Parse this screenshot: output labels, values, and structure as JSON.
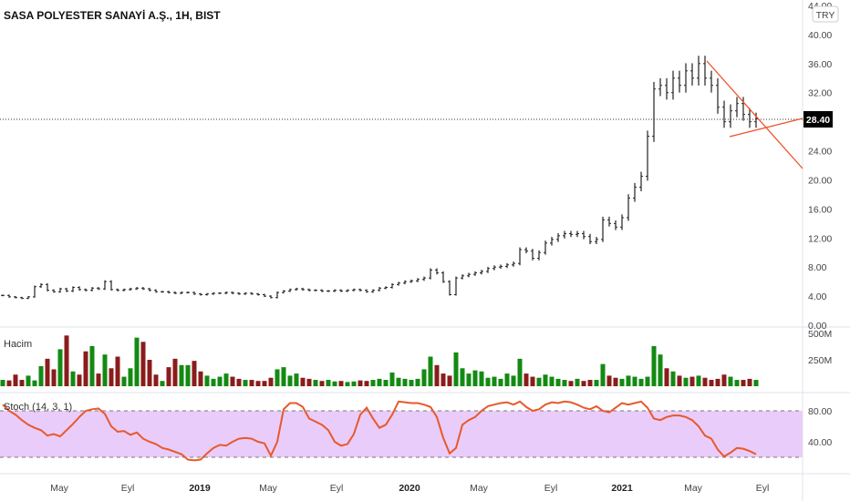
{
  "header": {
    "title": "SASA POLYESTER SANAYİ A.Ş., 1H, BIST",
    "currency_badge": "TRY"
  },
  "price_axis": {
    "ticks": [
      "44.00",
      "40.00",
      "36.00",
      "32.00",
      "24.00",
      "20.00",
      "16.00",
      "12.00",
      "8.00",
      "4.00",
      "0.00"
    ],
    "last_price": "28.40"
  },
  "volume_pane": {
    "label": "Hacim",
    "ticks": [
      "500M",
      "250M"
    ]
  },
  "stoch_pane": {
    "label": "Stoch (14, 3, 1)",
    "ticks": [
      "80.00",
      "40.00"
    ]
  },
  "time_axis": {
    "labels": [
      "May",
      "Eyl",
      "2019",
      "May",
      "Eyl",
      "2020",
      "May",
      "Eyl",
      "2021",
      "May",
      "Eyl"
    ]
  },
  "colors": {
    "bar": "#222222",
    "up": "#138a13",
    "down": "#8b1c1c",
    "stoch_line": "#e8592a",
    "stoch_band": "#e9ccfa",
    "trendline": "#f0502a"
  },
  "chart_data": [
    {
      "type": "ohlc-bar",
      "title": "SASA POLYESTER SANAYİ A.Ş., 1H, BIST",
      "ylim": [
        0,
        44
      ],
      "last": 28.4,
      "close": [
        4.1,
        3.9,
        3.8,
        3.7,
        3.9,
        5.3,
        5.6,
        4.8,
        4.6,
        5.0,
        4.7,
        5.2,
        4.9,
        4.8,
        5.1,
        5.0,
        6.0,
        4.9,
        4.8,
        4.9,
        5.0,
        5.1,
        5.0,
        4.8,
        4.6,
        4.6,
        4.5,
        4.4,
        4.5,
        4.5,
        4.3,
        4.2,
        4.3,
        4.4,
        4.4,
        4.5,
        4.4,
        4.3,
        4.4,
        4.3,
        4.2,
        4.0,
        3.8,
        4.5,
        4.7,
        4.9,
        5.0,
        4.9,
        4.8,
        4.8,
        4.7,
        4.7,
        4.8,
        4.7,
        4.8,
        4.9,
        4.8,
        4.6,
        4.8,
        5.1,
        5.2,
        5.6,
        5.8,
        6.0,
        6.1,
        6.3,
        6.5,
        7.6,
        7.2,
        6.0,
        4.2,
        6.5,
        6.8,
        7.0,
        7.2,
        7.4,
        7.8,
        8.0,
        8.1,
        8.3,
        8.5,
        10.4,
        10.2,
        9.2,
        10.0,
        11.3,
        11.8,
        12.3,
        12.6,
        12.5,
        12.6,
        12.2,
        11.5,
        11.8,
        14.5,
        14.0,
        13.5,
        14.8,
        17.5,
        19.0,
        20.5,
        26,
        32.5,
        33,
        32,
        34,
        33,
        35,
        34,
        36,
        34,
        33,
        30,
        28,
        29.5,
        30.5,
        29,
        28,
        28.4
      ]
    },
    {
      "type": "bar",
      "name": "Hacim",
      "ylim": [
        0,
        500
      ],
      "values": [
        60,
        55,
        110,
        60,
        100,
        55,
        190,
        260,
        160,
        350,
        480,
        140,
        110,
        330,
        380,
        120,
        300,
        170,
        280,
        90,
        170,
        460,
        420,
        250,
        110,
        50,
        180,
        260,
        200,
        200,
        240,
        140,
        100,
        70,
        90,
        120,
        90,
        70,
        60,
        60,
        50,
        50,
        80,
        160,
        180,
        100,
        120,
        80,
        70,
        60,
        50,
        60,
        45,
        50,
        40,
        45,
        55,
        50,
        60,
        70,
        60,
        130,
        80,
        70,
        60,
        70,
        160,
        280,
        200,
        120,
        100,
        320,
        170,
        120,
        150,
        140,
        80,
        90,
        70,
        120,
        100,
        260,
        120,
        90,
        80,
        110,
        90,
        70,
        60,
        50,
        70,
        50,
        60,
        60,
        210,
        100,
        80,
        70,
        100,
        90,
        70,
        90,
        380,
        300,
        170,
        140,
        100,
        80,
        90,
        100,
        80,
        60,
        70,
        110,
        90,
        60,
        60,
        70,
        60
      ]
    },
    {
      "type": "line",
      "name": "Stoch (14, 3, 1)",
      "ylim": [
        0,
        100
      ],
      "bands": [
        20,
        80
      ],
      "values": [
        88,
        80,
        75,
        68,
        62,
        58,
        55,
        48,
        50,
        47,
        55,
        63,
        72,
        80,
        82,
        83,
        76,
        60,
        53,
        54,
        49,
        52,
        44,
        40,
        37,
        32,
        30,
        27,
        24,
        17,
        16,
        17,
        25,
        32,
        36,
        35,
        40,
        44,
        45,
        44,
        40,
        38,
        22,
        40,
        82,
        90,
        90,
        85,
        70,
        66,
        62,
        55,
        40,
        35,
        37,
        50,
        75,
        84,
        70,
        58,
        62,
        75,
        92,
        91,
        90,
        90,
        88,
        85,
        72,
        45,
        25,
        32,
        62,
        68,
        72,
        80,
        86,
        88,
        90,
        91,
        88,
        92,
        85,
        80,
        82,
        88,
        91,
        90,
        92,
        91,
        88,
        84,
        82,
        86,
        80,
        78,
        84,
        90,
        88,
        90,
        92,
        84,
        70,
        68,
        72,
        74,
        74,
        72,
        68,
        60,
        48,
        44,
        30,
        21,
        26,
        32,
        31,
        28,
        24
      ]
    }
  ]
}
